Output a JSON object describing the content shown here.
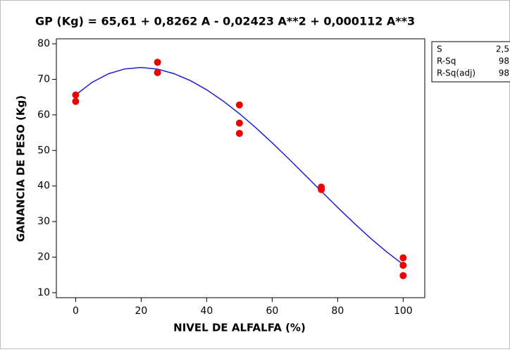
{
  "chart_data": {
    "type": "scatter",
    "title": "GP (Kg) =  65,61 + 0,8262 A  - 0,02423 A**2 + 0,000112 A**3",
    "xlabel": "NIVEL DE ALFALFA (%)",
    "ylabel": "GANANCIA DE PESO (Kg)",
    "xlim": [
      -5.9,
      106.6
    ],
    "ylim": [
      8.6,
      81.4
    ],
    "xticks": [
      0,
      20,
      40,
      60,
      80,
      100
    ],
    "yticks": [
      10,
      20,
      30,
      40,
      50,
      60,
      70,
      80
    ],
    "series": [
      {
        "type": "scatter",
        "color": "#ee0000",
        "x": [
          0,
          0,
          25,
          25,
          50,
          50,
          50,
          75,
          75,
          100,
          100,
          100
        ],
        "values": [
          65.6,
          63.8,
          74.8,
          71.9,
          62.8,
          57.7,
          54.8,
          39.7,
          39.0,
          19.8,
          17.7,
          14.8
        ]
      },
      {
        "type": "line",
        "color": "#1f1fd0",
        "x": [
          0,
          5,
          10,
          15,
          20,
          25,
          30,
          35,
          40,
          45,
          50,
          55,
          60,
          65,
          70,
          75,
          80,
          85,
          90,
          95,
          100
        ],
        "values": [
          65.61,
          69.15,
          71.56,
          72.93,
          73.34,
          72.87,
          71.61,
          69.65,
          67.06,
          63.93,
          60.35,
          56.39,
          52.15,
          47.7,
          43.13,
          38.53,
          33.98,
          29.56,
          25.35,
          21.45,
          17.93
        ]
      }
    ],
    "stats": [
      {
        "label": "S",
        "value": "2,5"
      },
      {
        "label": "R-Sq",
        "value": "98"
      },
      {
        "label": "R-Sq(adj)",
        "value": "98"
      }
    ]
  }
}
